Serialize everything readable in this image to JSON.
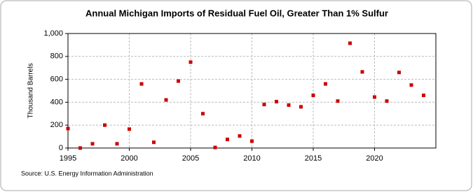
{
  "chart_data": {
    "type": "scatter",
    "title": "Annual Michigan Imports of Residual Fuel Oil, Greater Than 1% Sulfur",
    "y_label": "Thousand Barrels",
    "source": "Source: U.S. Energy Information Administration",
    "x": [
      1995,
      1996,
      1997,
      1998,
      1999,
      2000,
      2001,
      2002,
      2003,
      2004,
      2005,
      2006,
      2007,
      2008,
      2009,
      2010,
      2011,
      2012,
      2013,
      2014,
      2015,
      2016,
      2017,
      2018,
      2019,
      2020,
      2021,
      2022,
      2023,
      2024
    ],
    "series": [
      {
        "name": "Michigan",
        "color": "#cc0000",
        "values": [
          170,
          0,
          37,
          200,
          37,
          165,
          560,
          50,
          420,
          585,
          750,
          300,
          5,
          75,
          105,
          60,
          380,
          405,
          375,
          360,
          460,
          560,
          410,
          915,
          665,
          445,
          410,
          660,
          550,
          460
        ]
      }
    ],
    "xlim": [
      1995,
      2025
    ],
    "xticks": [
      1995,
      2000,
      2005,
      2010,
      2015,
      2020
    ],
    "ylim": [
      0,
      1000
    ],
    "yticks": [
      0,
      200,
      400,
      600,
      800,
      {
        "value": 1000,
        "label": "1,000"
      }
    ],
    "grid": true
  }
}
